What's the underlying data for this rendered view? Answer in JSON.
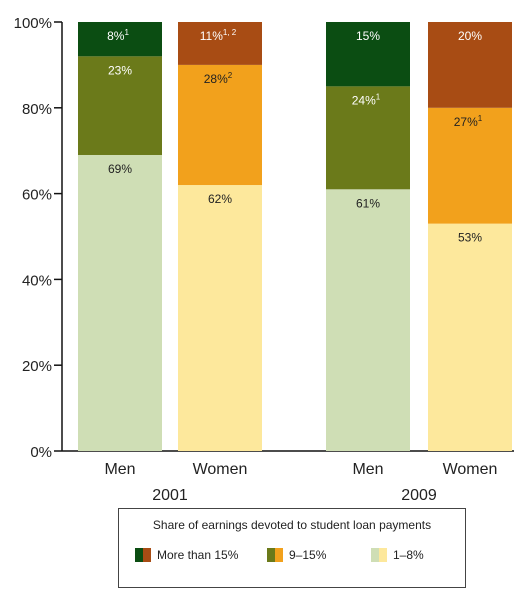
{
  "chart_data": {
    "type": "bar",
    "stacked": true,
    "y_ticks": [
      "0%",
      "20%",
      "40%",
      "60%",
      "80%",
      "100%"
    ],
    "ylim": [
      0,
      100
    ],
    "groups": [
      {
        "year": "2001",
        "bars": [
          {
            "category": "Men",
            "gender": "men",
            "segments": [
              {
                "value": 69,
                "label": "69%",
                "level": "1–8%"
              },
              {
                "value": 23,
                "label": "23%",
                "level": "9–15%"
              },
              {
                "value": 8,
                "label": "8%",
                "sup": "1",
                "level": "More than 15%"
              }
            ]
          },
          {
            "category": "Women",
            "gender": "women",
            "segments": [
              {
                "value": 62,
                "label": "62%",
                "level": "1–8%"
              },
              {
                "value": 28,
                "label": "28%",
                "sup": "2",
                "level": "9–15%"
              },
              {
                "value": 11,
                "label": "11%",
                "sup": "1, 2",
                "level": "More than 15%"
              }
            ]
          }
        ]
      },
      {
        "year": "2009",
        "bars": [
          {
            "category": "Men",
            "gender": "men",
            "segments": [
              {
                "value": 61,
                "label": "61%",
                "level": "1–8%"
              },
              {
                "value": 24,
                "label": "24%",
                "sup": "1",
                "level": "9–15%"
              },
              {
                "value": 15,
                "label": "15%",
                "level": "More than 15%"
              }
            ]
          },
          {
            "category": "Women",
            "gender": "women",
            "segments": [
              {
                "value": 53,
                "label": "53%",
                "level": "1–8%"
              },
              {
                "value": 27,
                "label": "27%",
                "sup": "1",
                "level": "9–15%"
              },
              {
                "value": 20,
                "label": "20%",
                "level": "More than 15%"
              }
            ]
          }
        ]
      }
    ],
    "colors": {
      "men": {
        "More than 15%": "#0b4d12",
        "9–15%": "#6b7a1a",
        "1–8%": "#cfdeb5"
      },
      "women": {
        "More than 15%": "#a84c14",
        "9–15%": "#f2a11c",
        "1–8%": "#fde89c"
      }
    },
    "legend": {
      "title": "Share of earnings devoted to student loan payments",
      "entries": [
        "More than 15%",
        "9–15%",
        "1–8%"
      ]
    }
  }
}
